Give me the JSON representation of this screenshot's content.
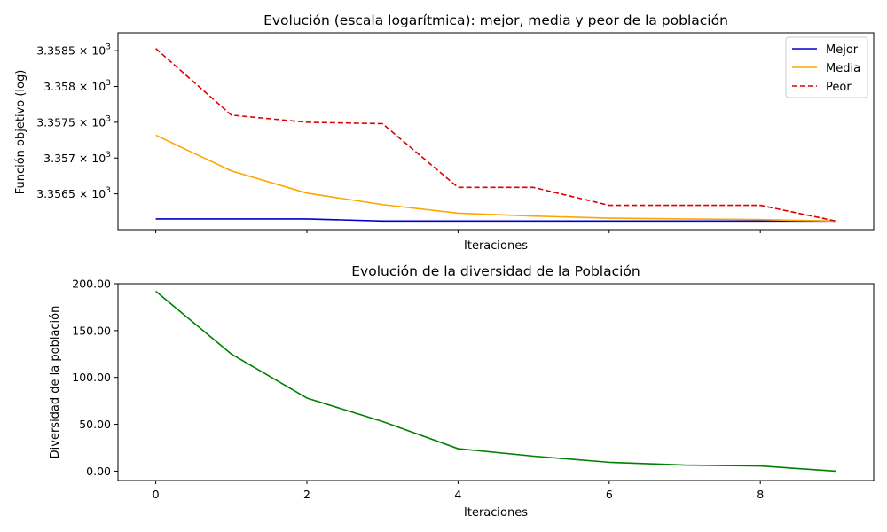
{
  "chart_data": [
    {
      "type": "line",
      "title": "Evolución (escala logarítmica): mejor, media y peor de la población",
      "xlabel": "Iteraciones",
      "ylabel": "Función objetivo (log)",
      "yscale": "log",
      "x": [
        0,
        1,
        2,
        3,
        4,
        5,
        6,
        7,
        8,
        9
      ],
      "xlim": [
        -0.5,
        9.5
      ],
      "ylim": [
        3356.0,
        3358.75
      ],
      "xticks": [
        0,
        2,
        4,
        6,
        8
      ],
      "xtick_labels_visible": false,
      "yticks": [
        3356.5,
        3357.0,
        3357.5,
        3358.0,
        3358.5
      ],
      "ytick_labels": [
        "3.3565",
        "3.357",
        "3.3575",
        "3.358",
        "3.3585"
      ],
      "ytick_suffix_mult": "×10",
      "ytick_suffix_exp": "3",
      "legend_position": "top-right",
      "series": [
        {
          "name": "Mejor",
          "color": "#0000cc",
          "style": "solid",
          "values": [
            3356.15,
            3356.15,
            3356.15,
            3356.12,
            3356.12,
            3356.12,
            3356.12,
            3356.12,
            3356.12,
            3356.12
          ]
        },
        {
          "name": "Media",
          "color": "#ffa500",
          "style": "solid",
          "values": [
            3357.32,
            3356.82,
            3356.51,
            3356.35,
            3356.23,
            3356.19,
            3356.16,
            3356.15,
            3356.14,
            3356.12
          ]
        },
        {
          "name": "Peor",
          "color": "#dd0000",
          "style": "dashed",
          "values": [
            3358.53,
            3357.6,
            3357.5,
            3357.48,
            3356.59,
            3356.59,
            3356.34,
            3356.34,
            3356.34,
            3356.12
          ]
        }
      ]
    },
    {
      "type": "line",
      "title": "Evolución de la diversidad de la Población",
      "xlabel": "Iteraciones",
      "ylabel": "Diversidad de la población",
      "x": [
        0,
        1,
        2,
        3,
        4,
        5,
        6,
        7,
        8,
        9
      ],
      "xlim": [
        -0.5,
        9.5
      ],
      "ylim": [
        -10,
        200
      ],
      "xticks": [
        0,
        2,
        4,
        6,
        8
      ],
      "xtick_labels": [
        "0",
        "2",
        "4",
        "6",
        "8"
      ],
      "yticks": [
        0,
        50,
        100,
        150,
        200
      ],
      "ytick_labels": [
        "0.00",
        "50.00",
        "100.00",
        "150.00",
        "200.00"
      ],
      "series": [
        {
          "color": "#008000",
          "style": "solid",
          "values": [
            192,
            125,
            78,
            53,
            24,
            16,
            9.5,
            6.5,
            5.5,
            0
          ]
        }
      ]
    }
  ]
}
